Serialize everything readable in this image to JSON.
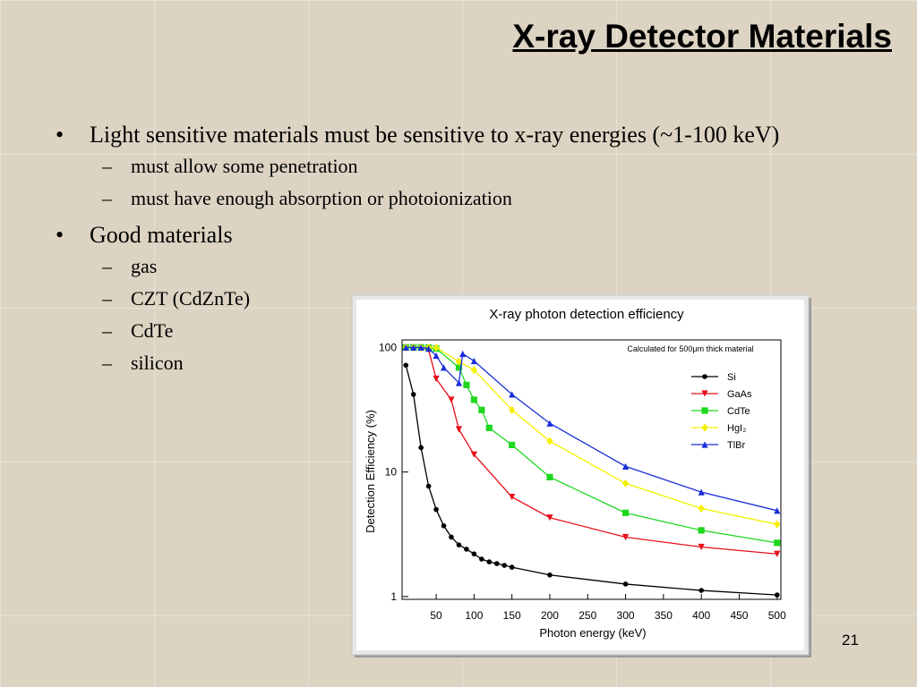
{
  "slide": {
    "title": "X-ray Detector Materials",
    "bullets": [
      {
        "text": "Light sensitive materials must be sensitive to x-ray energies (~1-100 keV)",
        "sub": [
          "must allow some penetration",
          "must have enough absorption or photoionization"
        ]
      },
      {
        "text": "Good materials",
        "sub": [
          "gas",
          "CZT (CdZnTe)",
          "CdTe",
          "silicon"
        ]
      }
    ],
    "page_number": "21"
  },
  "chart_data": {
    "type": "line",
    "title": "X-ray photon detection efficiency",
    "annotation": "Calculated for 500μm thick material",
    "x_label": "Photon energy (keV)",
    "y_label": "Detection Efficiency (%)",
    "xlim": [
      5,
      505
    ],
    "xticks": [
      50,
      100,
      150,
      200,
      250,
      300,
      350,
      400,
      450,
      500
    ],
    "ylim": [
      0.95,
      115
    ],
    "yticks": [
      1,
      10,
      100
    ],
    "log_y": true,
    "legend": "upper right",
    "series": [
      {
        "name": "Si",
        "color": "#000000",
        "marker": "circle",
        "x": [
          10,
          20,
          30,
          40,
          50,
          60,
          70,
          80,
          90,
          100,
          110,
          120,
          130,
          140,
          150,
          200,
          300,
          400,
          500
        ],
        "values": [
          72,
          42,
          15.7,
          7.7,
          5,
          3.7,
          3,
          2.6,
          2.4,
          2.2,
          2,
          1.9,
          1.84,
          1.78,
          1.72,
          1.49,
          1.26,
          1.12,
          1.03
        ]
      },
      {
        "name": "GaAs",
        "color": "#e8101a",
        "marker": "triangle-down",
        "x": [
          10,
          20,
          30,
          40,
          50,
          70,
          80,
          100,
          150,
          200,
          300,
          400,
          500
        ],
        "values": [
          100,
          100,
          100,
          96,
          56,
          38,
          22,
          13.8,
          6.3,
          4.3,
          3.0,
          2.5,
          2.2
        ]
      },
      {
        "name": "CdTe",
        "color": "#1ed81e",
        "marker": "square",
        "x": [
          10,
          20,
          30,
          40,
          50,
          80,
          90,
          100,
          110,
          120,
          150,
          200,
          300,
          400,
          500
        ],
        "values": [
          100,
          100,
          100,
          100,
          98,
          69,
          50,
          38,
          31.5,
          22.6,
          16.5,
          9.1,
          4.7,
          3.4,
          2.7
        ]
      },
      {
        "name": "HgI₂",
        "color": "#f4f000",
        "marker": "diamond",
        "x": [
          10,
          20,
          30,
          40,
          50,
          80,
          100,
          150,
          200,
          300,
          400,
          500
        ],
        "values": [
          100,
          100,
          100,
          100,
          100,
          77,
          66,
          31.5,
          17.7,
          8.1,
          5.1,
          3.8
        ]
      },
      {
        "name": "TlBr",
        "color": "#1a2fd8",
        "marker": "triangle-up",
        "x": [
          10,
          20,
          30,
          40,
          50,
          60,
          80,
          85,
          100,
          150,
          200,
          300,
          400,
          500
        ],
        "values": [
          100,
          100,
          100,
          98,
          86,
          69,
          52,
          89,
          78,
          42,
          24.6,
          11.1,
          6.9,
          4.9
        ]
      }
    ]
  }
}
